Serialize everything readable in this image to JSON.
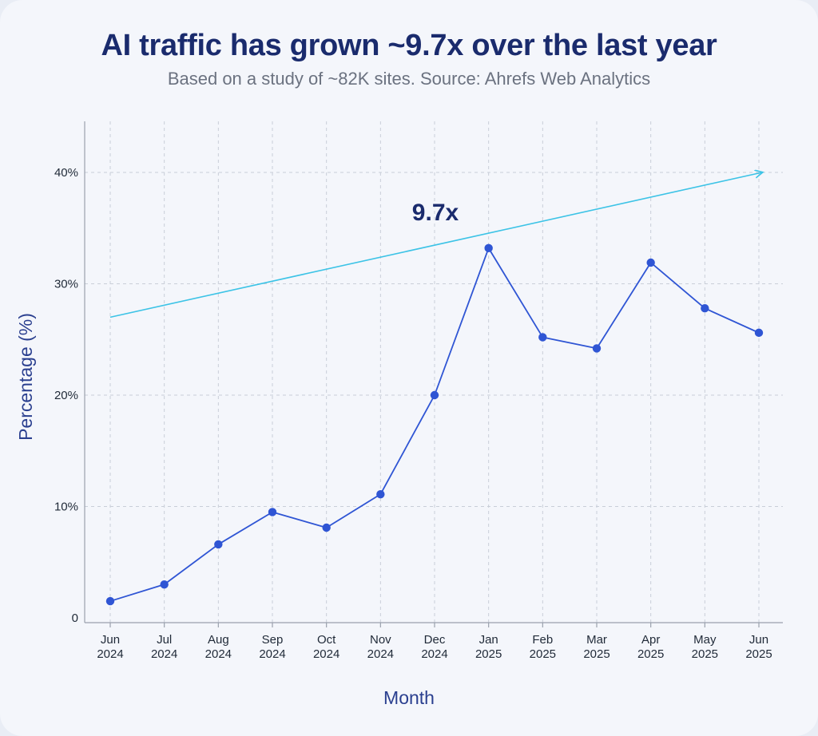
{
  "title": "AI traffic has grown ~9.7x over the last year",
  "subtitle": "Based on a study of ~82K sites. Source: Ahrefs Web Analytics",
  "chart_data": {
    "type": "line",
    "title": "AI traffic has grown ~9.7x over the last year",
    "subtitle": "Based on a study of ~82K sites. Source: Ahrefs Web Analytics",
    "xlabel": "Month",
    "ylabel": "Percentage (%)",
    "ylim": [
      0,
      45
    ],
    "grid": true,
    "categories": [
      [
        "Jun",
        "2024"
      ],
      [
        "Jul",
        "2024"
      ],
      [
        "Aug",
        "2024"
      ],
      [
        "Sep",
        "2024"
      ],
      [
        "Oct",
        "2024"
      ],
      [
        "Nov",
        "2024"
      ],
      [
        "Dec",
        "2024"
      ],
      [
        "Jan",
        "2025"
      ],
      [
        "Feb",
        "2025"
      ],
      [
        "Mar",
        "2025"
      ],
      [
        "Apr",
        "2025"
      ],
      [
        "May",
        "2025"
      ],
      [
        "Jun",
        "2025"
      ]
    ],
    "yticks": [
      {
        "value": 0,
        "label": "0"
      },
      {
        "value": 10,
        "label": "10%"
      },
      {
        "value": 20,
        "label": "20%"
      },
      {
        "value": 30,
        "label": "30%"
      },
      {
        "value": 40,
        "label": "40%"
      }
    ],
    "series": [
      {
        "name": "AI traffic",
        "color": "#2f55d4",
        "values": [
          1.5,
          3.0,
          6.6,
          9.5,
          8.1,
          11.1,
          20.0,
          33.2,
          25.2,
          24.2,
          31.9,
          27.8,
          25.6
        ]
      }
    ],
    "trend": {
      "label": "9.7x",
      "start_value": 27.0,
      "end_value": 40.0,
      "color": "#3cc3e6"
    }
  }
}
